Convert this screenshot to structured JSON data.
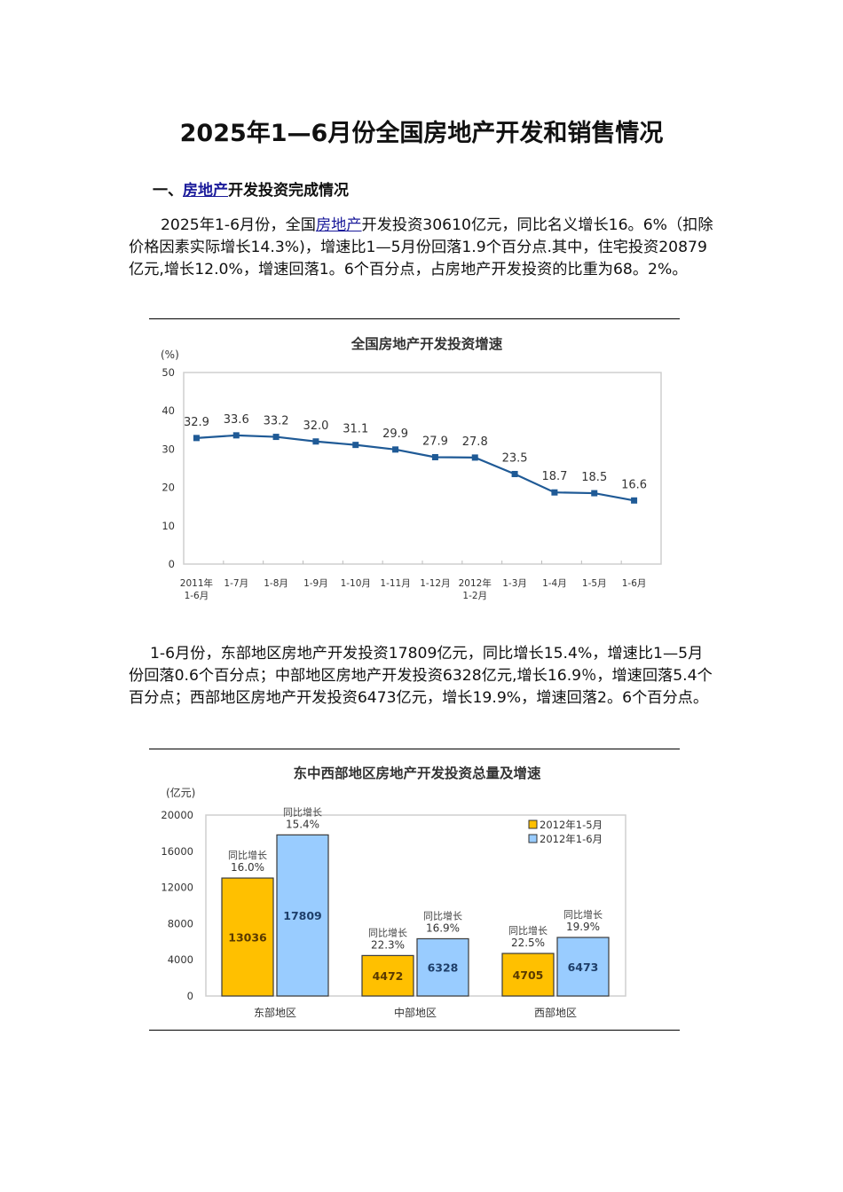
{
  "document": {
    "title": "2025年1—6月份全国房地产开发和销售情况",
    "section1": {
      "prefix": "一、",
      "link": "房地产",
      "suffix": "开发投资完成情况"
    },
    "para1": {
      "part1": "2025年1-6月份，全国",
      "link": "房地产",
      "part2": "开发投资30610亿元，同比名义增长16。6%（扣除价格因素实际增长14.3%)，增速比1—5月份回落1.9个百分点.其中，住宅投资20879亿元,增长12.0%，增速回落1。6个百分点，占房地产开发投资的比重为68。2%。"
    },
    "para2": "1-6月份，东部地区房地产开发投资17809亿元，同比增长15.4%，增速比1—5月份回落0.6个百分点；中部地区房地产开发投资6328亿元,增长16.9％，增速回落5.4个百分点；西部地区房地产开发投资6473亿元，增长19.9%，增速回落2。6个百分点。"
  },
  "chart_data": [
    {
      "type": "line",
      "title": "全国房地产开发投资增速",
      "ylabel": "(%)",
      "xlabel": "",
      "ylim": [
        0,
        50
      ],
      "yticks": [
        0,
        10,
        20,
        30,
        40,
        50
      ],
      "grid": false,
      "categories": [
        "2011年1-6月",
        "1-7月",
        "1-8月",
        "1-9月",
        "1-10月",
        "1-11月",
        "1-12月",
        "2012年1-2月",
        "1-3月",
        "1-4月",
        "1-5月",
        "1-6月"
      ],
      "category_lines": [
        [
          "2011年",
          "1-6月"
        ],
        [
          "1-7月"
        ],
        [
          "1-8月"
        ],
        [
          "1-9月"
        ],
        [
          "1-10月"
        ],
        [
          "1-11月"
        ],
        [
          "1-12月"
        ],
        [
          "2012年",
          "1-2月"
        ],
        [
          "1-3月"
        ],
        [
          "1-4月"
        ],
        [
          "1-5月"
        ],
        [
          "1-6月"
        ]
      ],
      "values": [
        32.9,
        33.6,
        33.2,
        32.0,
        31.1,
        29.9,
        27.9,
        27.8,
        23.5,
        18.7,
        18.5,
        16.6
      ],
      "value_labels": [
        "32.9",
        "33.6",
        "33.2",
        "32.0",
        "31.1",
        "29.9",
        "27.9",
        "27.8",
        "23.5",
        "18.7",
        "18.5",
        "16.6"
      ],
      "line_color": "#1f5a96"
    },
    {
      "type": "bar",
      "title": "东中西部地区房地产开发投资总量及增速",
      "ylabel": "(亿元)",
      "xlabel": "",
      "ylim": [
        0,
        20000
      ],
      "yticks": [
        0,
        4000,
        8000,
        12000,
        16000,
        20000
      ],
      "grid": false,
      "legend_position": "top-right",
      "categories": [
        "东部地区",
        "中部地区",
        "西部地区"
      ],
      "series": [
        {
          "name": "2012年1-5月",
          "color": "#ffc000",
          "values": [
            13036,
            4472,
            4705
          ],
          "growth_labels": [
            "同比增长",
            "同比增长",
            "同比增长"
          ],
          "growth": [
            "16.0%",
            "22.3%",
            "22.5%"
          ]
        },
        {
          "name": "2012年1-6月",
          "color": "#99ccff",
          "values": [
            17809,
            6328,
            6473
          ],
          "growth_labels": [
            "同比增长",
            "同比增长",
            "同比增长"
          ],
          "growth": [
            "15.4%",
            "16.9%",
            "19.9%"
          ]
        }
      ]
    }
  ]
}
